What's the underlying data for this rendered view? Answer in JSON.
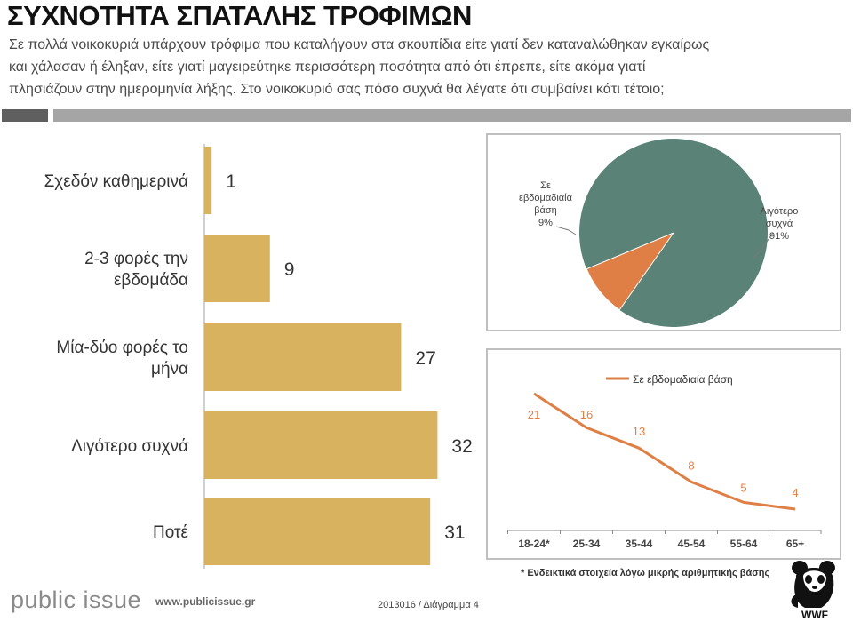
{
  "header": {
    "title": "ΣΥΧΝΟΤΗΤΑ ΣΠΑΤΑΛΗΣ ΤΡΟΦΙΜΩΝ",
    "subtitle_lines": [
      "Σε πολλά νοικοκυριά υπάρχουν τρόφιμα που καταλήγουν στα σκουπίδια είτε γιατί δεν καταναλώθηκαν εγκαίρως",
      "και χάλασαν ή έληξαν, είτε γιατί μαγειρεύτηκε περισσότερη ποσότητα από ότι έπρεπε, είτε ακόμα γιατί",
      "πλησιάζουν στην ημερομηνία λήξης. Στο νοικοκυριό σας πόσο συχνά θα λέγατε ότι συμβαίνει κάτι τέτοιο;"
    ]
  },
  "colors": {
    "bar": "#d8b25f",
    "pie_main": "#5a8277",
    "pie_slice": "#df7f45",
    "line": "#df7f45",
    "frame": "#bfbfbf"
  },
  "chart_data": [
    {
      "type": "bar",
      "orientation": "horizontal",
      "categories": [
        "Σχεδόν καθημερινά",
        "2-3 φορές την εβδομάδα",
        "Μία-δύο φορές το μήνα",
        "Λιγότερο συχνά",
        "Ποτέ"
      ],
      "category_lines": [
        [
          "Σχεδόν καθημερινά"
        ],
        [
          "2-3 φορές την",
          "εβδομάδα"
        ],
        [
          "Μία-δύο φορές το",
          "μήνα"
        ],
        [
          "Λιγότερο συχνά"
        ],
        [
          "Ποτέ"
        ]
      ],
      "values": [
        1,
        9,
        27,
        32,
        31
      ],
      "data_labels": [
        "1",
        "9",
        "27",
        "32",
        "31"
      ],
      "xlim": [
        0,
        32
      ]
    },
    {
      "type": "pie",
      "slices": [
        {
          "label_lines": [
            "Σε",
            "εβδομαδιαία",
            "βάση"
          ],
          "percent_label": "9%",
          "value": 9
        },
        {
          "label_lines": [
            "Λιγότερο",
            "συχνά"
          ],
          "percent_label": "91%",
          "value": 91
        }
      ]
    },
    {
      "type": "line",
      "categories": [
        "18-24*",
        "25-34",
        "35-44",
        "45-54",
        "55-64",
        "65+"
      ],
      "series": [
        {
          "name": "Σε εβδομαδιαία βάση",
          "values": [
            21,
            16,
            13,
            8,
            5,
            4
          ],
          "data_labels": [
            "21",
            "16",
            "13",
            "8",
            "5",
            "4"
          ]
        }
      ],
      "ylim": [
        0,
        24
      ]
    }
  ],
  "footer": {
    "note": "* Ενδεικτικά στοιχεία λόγω μικρής αριθμητικής βάσης",
    "brand": "public issue",
    "url": "www.publicissue.gr",
    "code": "2013016 / Διάγραμμα 4",
    "logo_text": "WWF"
  }
}
